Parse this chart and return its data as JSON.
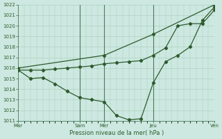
{
  "xlabel": "Pression niveau de la mer( hPa )",
  "bg_color": "#cce8e0",
  "grid_color": "#aaccbc",
  "line_color": "#2d5a2d",
  "vline_color": "#4a7a5a",
  "ylim": [
    1011,
    1022
  ],
  "yticks": [
    1011,
    1012,
    1013,
    1014,
    1015,
    1016,
    1017,
    1018,
    1019,
    1020,
    1021,
    1022
  ],
  "xlim": [
    0,
    96
  ],
  "day_labels": [
    "Mar",
    "Sam",
    "Mer",
    "Jeu",
    "Ven"
  ],
  "day_positions": [
    0,
    30,
    42,
    66,
    96
  ],
  "vline_positions": [
    30,
    42,
    66
  ],
  "line1_x": [
    0,
    6,
    12,
    18,
    24,
    30,
    36,
    42,
    48,
    54,
    60,
    66,
    72,
    78,
    84,
    90,
    96
  ],
  "line1_y": [
    1015.8,
    1015.0,
    1015.1,
    1014.5,
    1013.8,
    1013.2,
    1013.0,
    1012.8,
    1011.5,
    1011.1,
    1011.2,
    1014.6,
    1016.6,
    1017.2,
    1018.0,
    1020.5,
    1021.8
  ],
  "line2_x": [
    0,
    6,
    12,
    18,
    24,
    30,
    36,
    42,
    48,
    54,
    60,
    66,
    72,
    78,
    84,
    90,
    96
  ],
  "line2_y": [
    1015.8,
    1015.8,
    1015.8,
    1015.9,
    1016.0,
    1016.1,
    1016.2,
    1016.4,
    1016.5,
    1016.6,
    1016.7,
    1017.2,
    1017.9,
    1020.0,
    1020.2,
    1020.2,
    1021.5
  ],
  "line3_x": [
    0,
    42,
    66,
    96
  ],
  "line3_y": [
    1016.0,
    1017.2,
    1019.2,
    1022.0
  ]
}
